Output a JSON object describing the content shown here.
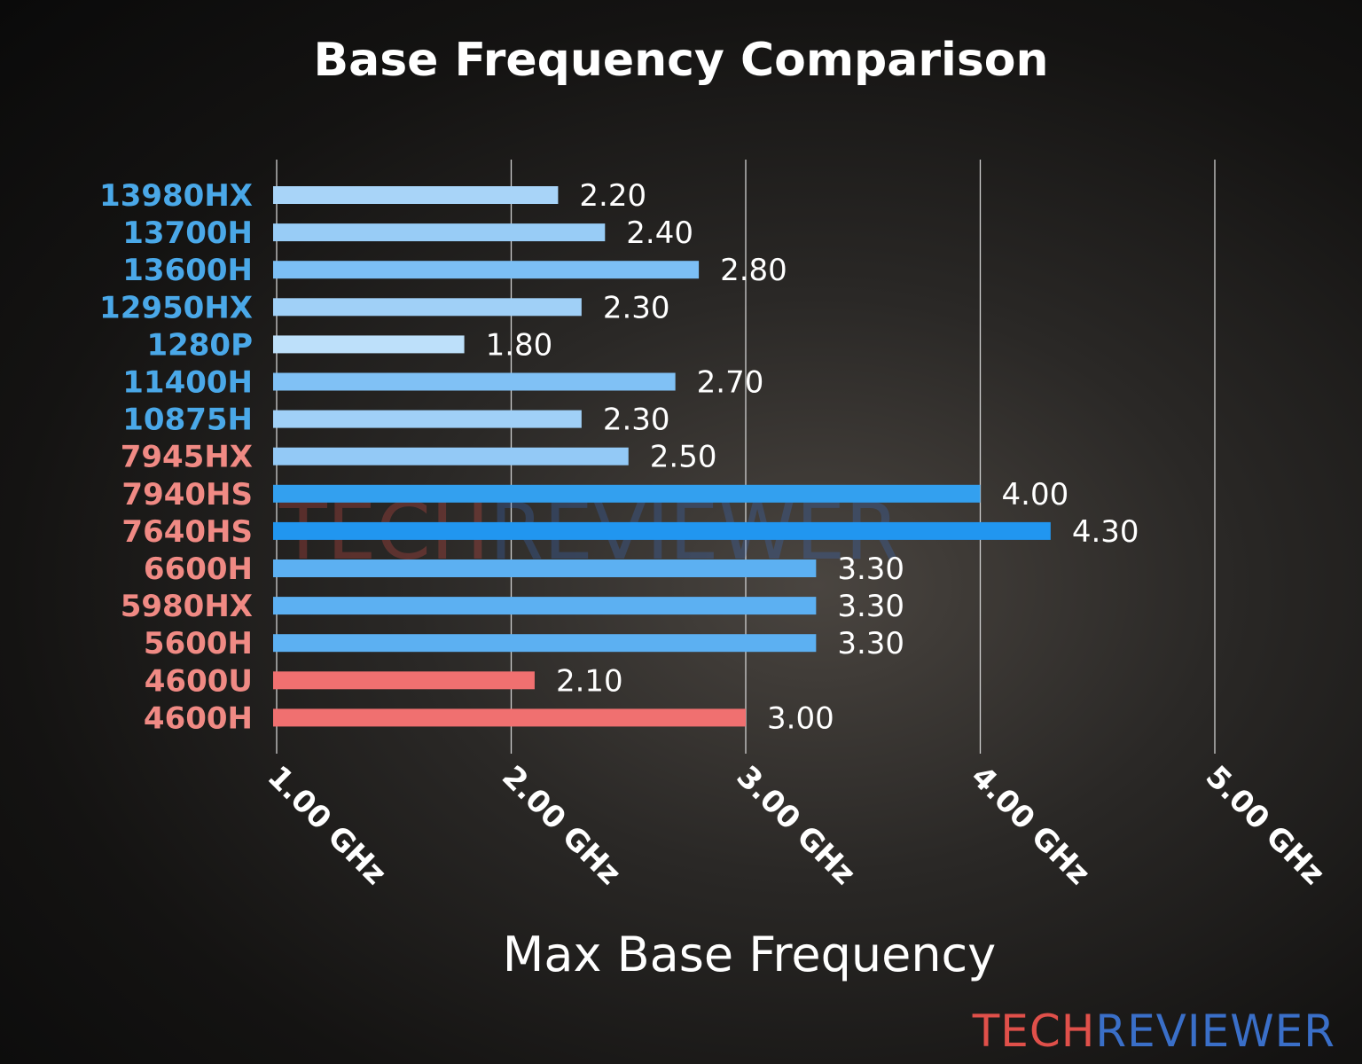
{
  "chart_data": {
    "type": "bar",
    "orientation": "horizontal",
    "title": "Base Frequency Comparison",
    "xlabel": "Max Base Frequency",
    "ylabel": "",
    "xlim": [
      1.0,
      5.2
    ],
    "xticks": [
      1.0,
      2.0,
      3.0,
      4.0,
      5.0
    ],
    "xtick_labels": [
      "1.00 GHz",
      "2.00 GHz",
      "3.00 GHz",
      "4.00 GHz",
      "5.00 GHz"
    ],
    "grid": "vertical",
    "categories": [
      "13980HX",
      "13700H",
      "13600H",
      "12950HX",
      "1280P",
      "11400H",
      "10875H",
      "7945HX",
      "7940HS",
      "7640HS",
      "6600H",
      "5980HX",
      "5600H",
      "4600U",
      "4600H"
    ],
    "values": [
      2.2,
      2.4,
      2.8,
      2.3,
      1.8,
      2.7,
      2.3,
      2.5,
      4.0,
      4.3,
      3.3,
      3.3,
      3.3,
      2.1,
      3.0
    ],
    "value_labels": [
      "2.20",
      "2.40",
      "2.80",
      "2.30",
      "1.80",
      "2.70",
      "2.30",
      "2.50",
      "4.00",
      "4.30",
      "3.30",
      "3.30",
      "3.30",
      "2.10",
      "3.00"
    ],
    "label_colors": [
      "#4aa8e8",
      "#4aa8e8",
      "#4aa8e8",
      "#4aa8e8",
      "#4aa8e8",
      "#4aa8e8",
      "#4aa8e8",
      "#f08a84",
      "#f08a84",
      "#f08a84",
      "#f08a84",
      "#f08a84",
      "#f08a84",
      "#f08a84",
      "#f08a84"
    ],
    "bar_colors": [
      "#a8d4f8",
      "#98ccf6",
      "#7cbff5",
      "#a0d0f7",
      "#bde0fa",
      "#80c1f5",
      "#a0d0f7",
      "#93c9f6",
      "#33a0ef",
      "#2196f0",
      "#5cb0f2",
      "#5cb0f2",
      "#5cb0f2",
      "#f07070",
      "#f07070"
    ]
  },
  "watermark": {
    "part1": "TECH",
    "part2": "REVIEWER",
    "color1": "#e0504a",
    "color2": "#3a6fc8"
  }
}
